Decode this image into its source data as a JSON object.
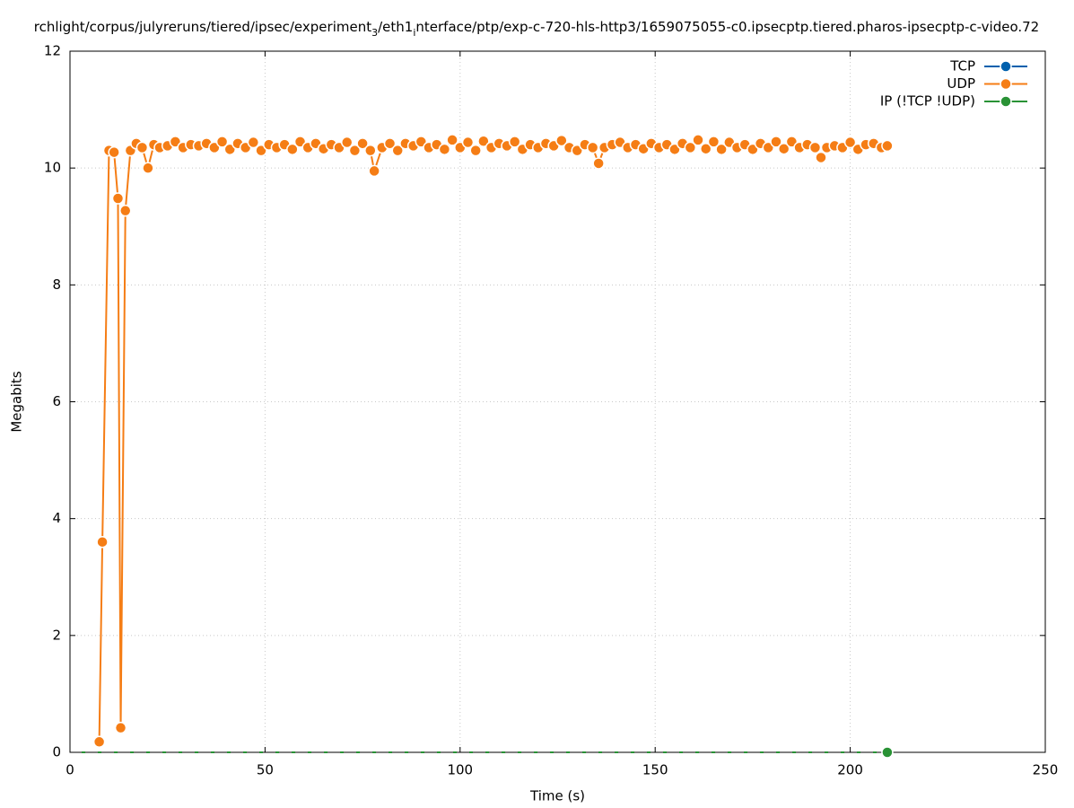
{
  "chart_data": {
    "type": "line",
    "title_parts": [
      "rchlight/corpus/julyreruns/tiered/ipsec/experiment",
      "3",
      "/eth1",
      "i",
      "nterface/ptp/exp-c-720-hls-http3/1659075055-c0.ipsecptp.tiered.pharos-ipsecptp-c-video.72"
    ],
    "x_label": "Time (s)",
    "y_label": "Megabits",
    "xlim": [
      0,
      250
    ],
    "xticks": [
      0,
      50,
      100,
      150,
      200,
      250
    ],
    "ylim": [
      0,
      12
    ],
    "yticks": [
      0,
      2,
      4,
      6,
      8,
      10,
      12
    ],
    "grid": true,
    "legend": "top-right",
    "series": [
      {
        "name": "TCP",
        "color": "#0060ad",
        "x": [],
        "values": []
      },
      {
        "name": "UDP",
        "color": "#f57d15",
        "x": [
          7.5,
          8.3,
          10,
          11.3,
          12.3,
          13,
          14.2,
          15.5,
          17,
          18.5,
          20,
          21.5,
          23,
          25,
          27,
          29,
          31,
          33,
          35,
          37,
          39,
          41,
          43,
          45,
          47,
          49,
          51,
          53,
          55,
          57,
          59,
          61,
          63,
          65,
          67,
          69,
          71,
          73,
          75,
          77,
          78,
          80,
          82,
          84,
          86,
          88,
          90,
          92,
          94,
          96,
          98,
          100,
          102,
          104,
          106,
          108,
          110,
          112,
          114,
          116,
          118,
          120,
          122,
          124,
          126,
          128,
          130,
          132,
          134,
          135.5,
          137,
          139,
          141,
          143,
          145,
          147,
          149,
          151,
          153,
          155,
          157,
          159,
          161,
          163,
          165,
          167,
          169,
          171,
          173,
          175,
          177,
          179,
          181,
          183,
          185,
          187,
          189,
          191,
          192.5,
          194,
          196,
          198,
          200,
          202,
          204,
          206,
          208,
          209.5
        ],
        "values": [
          0.18,
          3.6,
          10.3,
          10.27,
          9.48,
          0.42,
          9.27,
          10.3,
          10.42,
          10.35,
          10.0,
          10.4,
          10.35,
          10.38,
          10.45,
          10.35,
          10.4,
          10.38,
          10.42,
          10.35,
          10.45,
          10.32,
          10.42,
          10.35,
          10.44,
          10.3,
          10.4,
          10.35,
          10.4,
          10.32,
          10.45,
          10.35,
          10.42,
          10.33,
          10.4,
          10.35,
          10.44,
          10.3,
          10.42,
          10.3,
          9.95,
          10.35,
          10.42,
          10.3,
          10.42,
          10.38,
          10.45,
          10.35,
          10.4,
          10.32,
          10.48,
          10.35,
          10.44,
          10.3,
          10.46,
          10.35,
          10.42,
          10.38,
          10.45,
          10.32,
          10.4,
          10.35,
          10.42,
          10.38,
          10.47,
          10.35,
          10.3,
          10.4,
          10.35,
          10.08,
          10.35,
          10.4,
          10.44,
          10.35,
          10.4,
          10.33,
          10.42,
          10.35,
          10.4,
          10.32,
          10.42,
          10.35,
          10.48,
          10.33,
          10.45,
          10.32,
          10.44,
          10.35,
          10.4,
          10.32,
          10.42,
          10.35,
          10.45,
          10.33,
          10.45,
          10.35,
          10.4,
          10.35,
          10.18,
          10.35,
          10.38,
          10.35,
          10.44,
          10.32,
          10.4,
          10.42,
          10.35,
          10.38
        ]
      },
      {
        "name": "IP (!TCP  !UDP)",
        "color": "#299235",
        "x": [
          3,
          209.5
        ],
        "values": [
          0,
          0
        ]
      }
    ]
  }
}
